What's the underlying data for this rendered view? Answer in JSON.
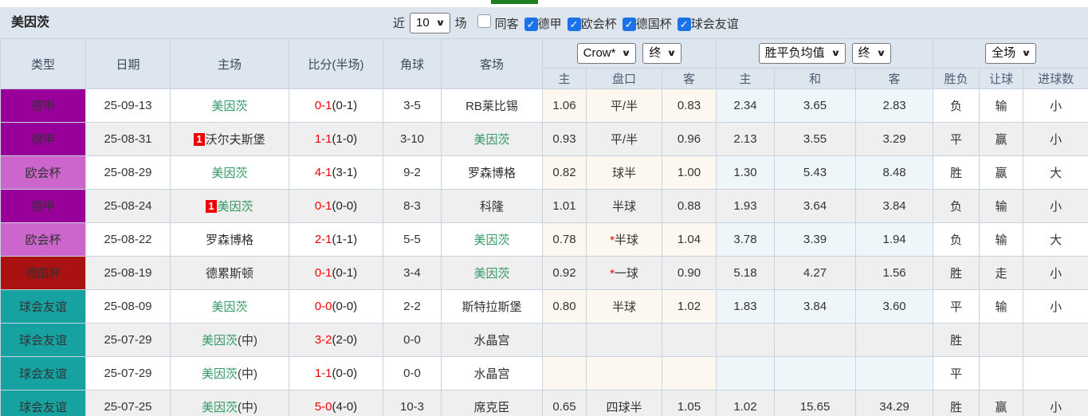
{
  "topbar": {
    "team_title": "美因茨",
    "recent_label": "近",
    "matches_count": "10",
    "matches_label": "场",
    "filters": [
      {
        "label": "同客",
        "checked": false
      },
      {
        "label": "德甲",
        "checked": true
      },
      {
        "label": "欧会杯",
        "checked": true
      },
      {
        "label": "德国杯",
        "checked": true
      },
      {
        "label": "球会友谊",
        "checked": true
      }
    ]
  },
  "header": {
    "cols": [
      "类型",
      "日期",
      "主场",
      "比分(半场)",
      "角球",
      "客场"
    ],
    "odds_company": "Crow*",
    "odds_state": "终",
    "odds_sub": [
      "主",
      "盘口",
      "客"
    ],
    "avg_label": "胜平负均值",
    "avg_state": "终",
    "avg_sub": [
      "主",
      "和",
      "客"
    ],
    "scope_label": "全场",
    "result_sub": [
      "胜负",
      "让球",
      "进球数"
    ]
  },
  "colors": {
    "league_dejia": "#990099",
    "league_ouhuibei": "#cc66cc",
    "league_deguobei": "#aa1111",
    "league_qiuhuiyouyi": "#17a2a2",
    "accent_checked": "#1a73e8",
    "win_red": "#e53333",
    "draw_blue": "#4646e8",
    "lose_green": "#339966",
    "score_red": "#ee0000"
  },
  "rows": [
    {
      "league": "德甲",
      "lcolor": "#990099",
      "date": "25-09-13",
      "home": {
        "card": "",
        "name": "美因茨",
        "suffix": "",
        "self": true
      },
      "score": "0-1",
      "half": "(0-1)",
      "corners": "3-5",
      "away": {
        "card": "",
        "name": "RB莱比锡",
        "suffix": "",
        "self": false
      },
      "o1": "1.06",
      "star": false,
      "hcap": "平/半",
      "o2": "0.83",
      "a1": "2.34",
      "a2": "3.65",
      "a3": "2.83",
      "r1": {
        "t": "负",
        "tone": "green"
      },
      "r2": {
        "t": "输",
        "tone": "green"
      },
      "r3": {
        "t": "小",
        "tone": "green"
      }
    },
    {
      "league": "德甲",
      "lcolor": "#990099",
      "date": "25-08-31",
      "home": {
        "card": "1",
        "name": "沃尔夫斯堡",
        "suffix": "",
        "self": false
      },
      "score": "1-1",
      "half": "(1-0)",
      "corners": "3-10",
      "away": {
        "card": "",
        "name": "美因茨",
        "suffix": "",
        "self": true
      },
      "o1": "0.93",
      "star": false,
      "hcap": "平/半",
      "o2": "0.96",
      "a1": "2.13",
      "a2": "3.55",
      "a3": "3.29",
      "r1": {
        "t": "平",
        "tone": "blue"
      },
      "r2": {
        "t": "赢",
        "tone": "red"
      },
      "r3": {
        "t": "小",
        "tone": "green"
      }
    },
    {
      "league": "欧会杯",
      "lcolor": "#cc66cc",
      "date": "25-08-29",
      "home": {
        "card": "",
        "name": "美因茨",
        "suffix": "",
        "self": true
      },
      "score": "4-1",
      "half": "(3-1)",
      "corners": "9-2",
      "away": {
        "card": "",
        "name": "罗森博格",
        "suffix": "",
        "self": false
      },
      "o1": "0.82",
      "star": false,
      "hcap": "球半",
      "o2": "1.00",
      "a1": "1.30",
      "a2": "5.43",
      "a3": "8.48",
      "r1": {
        "t": "胜",
        "tone": "red"
      },
      "r2": {
        "t": "赢",
        "tone": "red"
      },
      "r3": {
        "t": "大",
        "tone": "red"
      }
    },
    {
      "league": "德甲",
      "lcolor": "#990099",
      "date": "25-08-24",
      "home": {
        "card": "1",
        "name": "美因茨",
        "suffix": "",
        "self": true
      },
      "score": "0-1",
      "half": "(0-0)",
      "corners": "8-3",
      "away": {
        "card": "",
        "name": "科隆",
        "suffix": "",
        "self": false
      },
      "o1": "1.01",
      "star": false,
      "hcap": "半球",
      "o2": "0.88",
      "a1": "1.93",
      "a2": "3.64",
      "a3": "3.84",
      "r1": {
        "t": "负",
        "tone": "green"
      },
      "r2": {
        "t": "输",
        "tone": "green"
      },
      "r3": {
        "t": "小",
        "tone": "green"
      }
    },
    {
      "league": "欧会杯",
      "lcolor": "#cc66cc",
      "date": "25-08-22",
      "home": {
        "card": "",
        "name": "罗森博格",
        "suffix": "",
        "self": false
      },
      "score": "2-1",
      "half": "(1-1)",
      "corners": "5-5",
      "away": {
        "card": "",
        "name": "美因茨",
        "suffix": "",
        "self": true
      },
      "o1": "0.78",
      "star": true,
      "hcap": "半球",
      "o2": "1.04",
      "a1": "3.78",
      "a2": "3.39",
      "a3": "1.94",
      "r1": {
        "t": "负",
        "tone": "green"
      },
      "r2": {
        "t": "输",
        "tone": "green"
      },
      "r3": {
        "t": "大",
        "tone": "red"
      }
    },
    {
      "league": "德国杯",
      "lcolor": "#aa1111",
      "date": "25-08-19",
      "home": {
        "card": "",
        "name": "德累斯顿",
        "suffix": "",
        "self": false
      },
      "score": "0-1",
      "half": "(0-1)",
      "corners": "3-4",
      "away": {
        "card": "",
        "name": "美因茨",
        "suffix": "",
        "self": true
      },
      "o1": "0.92",
      "star": true,
      "hcap": "一球",
      "o2": "0.90",
      "a1": "5.18",
      "a2": "4.27",
      "a3": "1.56",
      "r1": {
        "t": "胜",
        "tone": "red"
      },
      "r2": {
        "t": "走",
        "tone": "blue"
      },
      "r3": {
        "t": "小",
        "tone": "green"
      }
    },
    {
      "league": "球会友谊",
      "lcolor": "#17a2a2",
      "date": "25-08-09",
      "home": {
        "card": "",
        "name": "美因茨",
        "suffix": "",
        "self": true
      },
      "score": "0-0",
      "half": "(0-0)",
      "corners": "2-2",
      "away": {
        "card": "",
        "name": "斯特拉斯堡",
        "suffix": "",
        "self": false
      },
      "o1": "0.80",
      "star": false,
      "hcap": "半球",
      "o2": "1.02",
      "a1": "1.83",
      "a2": "3.84",
      "a3": "3.60",
      "r1": {
        "t": "平",
        "tone": "blue"
      },
      "r2": {
        "t": "输",
        "tone": "green"
      },
      "r3": {
        "t": "小",
        "tone": "green"
      }
    },
    {
      "league": "球会友谊",
      "lcolor": "#17a2a2",
      "date": "25-07-29",
      "home": {
        "card": "",
        "name": "美因茨",
        "suffix": "(中)",
        "self": true
      },
      "score": "3-2",
      "half": "(2-0)",
      "corners": "0-0",
      "away": {
        "card": "",
        "name": "水晶宫",
        "suffix": "",
        "self": false
      },
      "o1": "",
      "star": false,
      "hcap": "",
      "o2": "",
      "a1": "",
      "a2": "",
      "a3": "",
      "r1": {
        "t": "胜",
        "tone": "red"
      },
      "r2": {
        "t": "",
        "tone": ""
      },
      "r3": {
        "t": "",
        "tone": ""
      }
    },
    {
      "league": "球会友谊",
      "lcolor": "#17a2a2",
      "date": "25-07-29",
      "home": {
        "card": "",
        "name": "美因茨",
        "suffix": "(中)",
        "self": true
      },
      "score": "1-1",
      "half": "(0-0)",
      "corners": "0-0",
      "away": {
        "card": "",
        "name": "水晶宫",
        "suffix": "",
        "self": false
      },
      "o1": "",
      "star": false,
      "hcap": "",
      "o2": "",
      "a1": "",
      "a2": "",
      "a3": "",
      "r1": {
        "t": "平",
        "tone": "blue"
      },
      "r2": {
        "t": "",
        "tone": ""
      },
      "r3": {
        "t": "",
        "tone": ""
      }
    },
    {
      "league": "球会友谊",
      "lcolor": "#17a2a2",
      "date": "25-07-25",
      "home": {
        "card": "",
        "name": "美因茨",
        "suffix": "(中)",
        "self": true
      },
      "score": "5-0",
      "half": "(4-0)",
      "corners": "10-3",
      "away": {
        "card": "",
        "name": "席克臣",
        "suffix": "",
        "self": false
      },
      "o1": "0.65",
      "star": false,
      "hcap": "四球半",
      "o2": "1.05",
      "a1": "1.02",
      "a2": "15.65",
      "a3": "34.29",
      "r1": {
        "t": "胜",
        "tone": "red"
      },
      "r2": {
        "t": "赢",
        "tone": "red"
      },
      "r3": {
        "t": "小",
        "tone": "green"
      }
    }
  ]
}
